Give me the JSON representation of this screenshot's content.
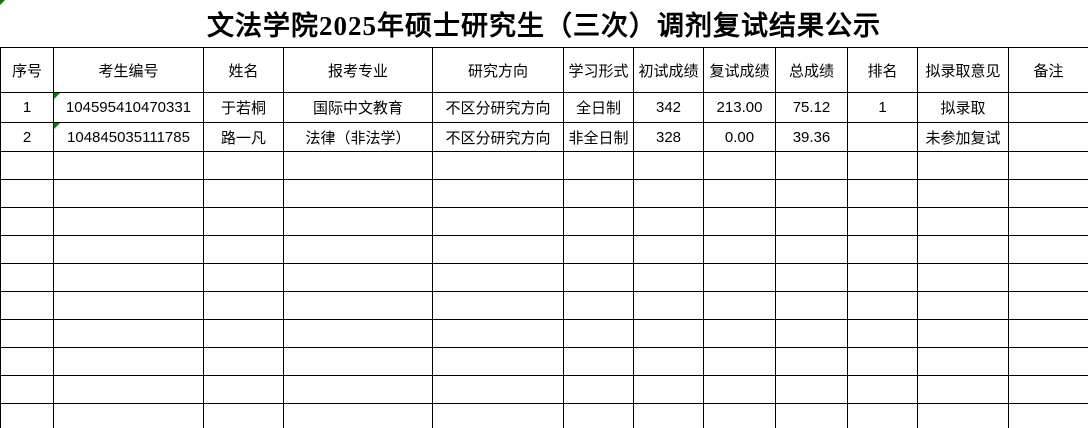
{
  "title": "文法学院2025年硕士研究生（三次）调剂复试结果公示",
  "colors": {
    "error_indicator_green": "#008000",
    "grid_border": "#000000",
    "background": "#ffffff"
  },
  "icons": {
    "corner_indicator": "cell-error-indicator",
    "cell_indicator": "number-stored-as-text-indicator"
  },
  "table": {
    "headers": [
      "序号",
      "考生编号",
      "姓名",
      "报考专业",
      "研究方向",
      "学习形式",
      "初试成绩",
      "复试成绩",
      "总成绩",
      "排名",
      "拟录取意见",
      "备注"
    ],
    "rows": [
      {
        "cells": [
          "1",
          "104595410470331",
          "于若桐",
          "国际中文教育",
          "不区分研究方向",
          "全日制",
          "342",
          "213.00",
          "75.12",
          "1",
          "拟录取",
          ""
        ]
      },
      {
        "cells": [
          "2",
          "104845035111785",
          "路一凡",
          "法律（非法学）",
          "不区分研究方向",
          "非全日制",
          "328",
          "0.00",
          "39.36",
          "",
          "未参加复试",
          ""
        ]
      }
    ],
    "empty_row_count": 10
  }
}
